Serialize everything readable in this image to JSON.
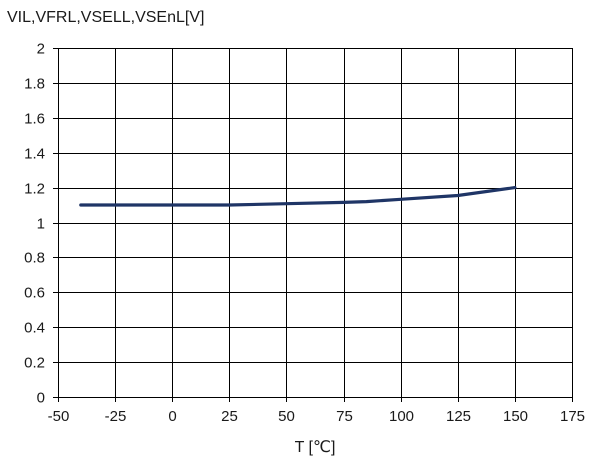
{
  "chart_data": {
    "type": "line",
    "title": "",
    "ylabel": "VIL,VFRL,VSELL,VSEnL[V]",
    "xlabel": "T [℃]",
    "xlim": [
      -50,
      175
    ],
    "ylim": [
      0,
      2
    ],
    "x_ticks": [
      -50,
      -25,
      0,
      25,
      50,
      75,
      100,
      125,
      150,
      175
    ],
    "y_ticks": [
      0,
      0.2,
      0.4,
      0.6,
      0.8,
      1,
      1.2,
      1.4,
      1.6,
      1.8,
      2
    ],
    "grid": true,
    "legend": "none",
    "series": [
      {
        "x": [
          -40,
          -25,
          0,
          25,
          50,
          75,
          85,
          100,
          125,
          150
        ],
        "y": [
          1.1,
          1.1,
          1.1,
          1.1,
          1.108,
          1.115,
          1.12,
          1.133,
          1.155,
          1.2
        ]
      }
    ],
    "colors": {
      "series": "#1f3566",
      "grid": "#000000",
      "text": "#1a1a1a"
    }
  }
}
